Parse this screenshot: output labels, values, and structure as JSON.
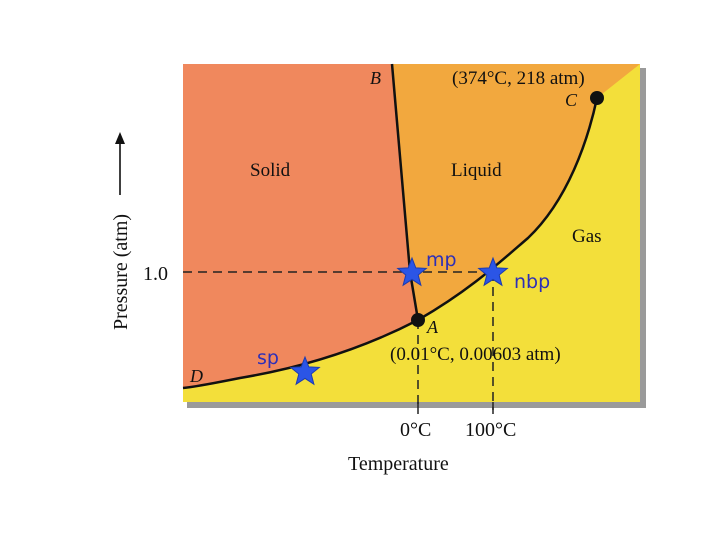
{
  "axes": {
    "y_label": "Pressure (atm)",
    "x_label": "Temperature",
    "y_tick": "1.0",
    "x_ticks": [
      "0°C",
      "100°C"
    ]
  },
  "regions": {
    "solid": "Solid",
    "liquid": "Liquid",
    "gas": "Gas"
  },
  "points": {
    "B": "B",
    "C": "C",
    "A": "A",
    "D": "D",
    "critical_point": "(374°C, 218 atm)",
    "triple_point": "(0.01°C, 0.00603 atm)",
    "melting_point": "mp",
    "normal_boiling_point": "nbp",
    "sublimation_point": "sp"
  },
  "colors": {
    "solid": "#f0885d",
    "liquid": "#f2a83e",
    "gas": "#f3df3a",
    "star": "#2b55e6",
    "star_label": "#2d2fb8",
    "curve": "#111111"
  }
}
